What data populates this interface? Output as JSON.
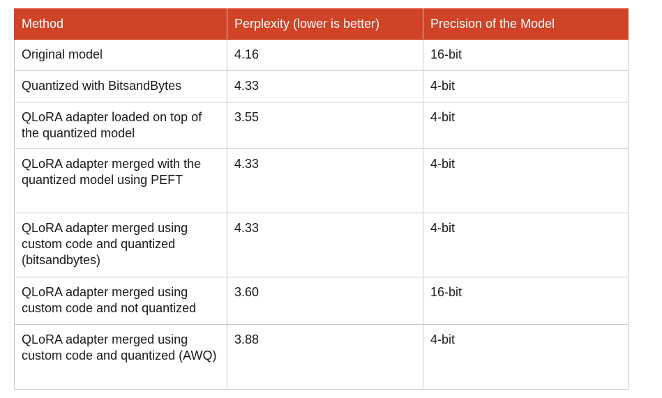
{
  "table": {
    "headers": [
      "Method",
      "Perplexity (lower is better)",
      "Precision of the Model"
    ],
    "rows": [
      {
        "method": "Original model",
        "perplexity": "4.16",
        "precision": "16-bit"
      },
      {
        "method": "Quantized with BitsandBytes",
        "perplexity": "4.33",
        "precision": "4-bit"
      },
      {
        "method": "QLoRA adapter loaded on top of the quantized model",
        "perplexity": "3.55",
        "precision": "4-bit",
        "highlight": true
      },
      {
        "method": "QLoRA adapter merged with the quantized model using PEFT",
        "perplexity": "4.33",
        "precision": "4-bit"
      },
      {
        "method": "QLoRA adapter merged using custom code and quantized (bitsandbytes)",
        "perplexity": "4.33",
        "precision": "4-bit"
      },
      {
        "method": "QLoRA adapter merged using custom code and not quantized",
        "perplexity": "3.60",
        "precision": "16-bit"
      },
      {
        "method": "QLoRA adapter merged using custom code and quantized (AWQ)",
        "perplexity": "3.88",
        "precision": "4-bit"
      }
    ]
  },
  "colors": {
    "header_bg": "#d14327",
    "header_text": "#ffffff",
    "border": "#c9c9c9"
  }
}
